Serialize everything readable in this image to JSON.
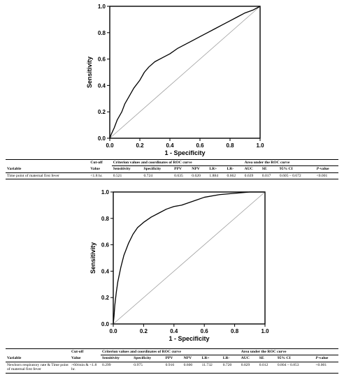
{
  "chart_data": [
    {
      "type": "line",
      "title": "",
      "xlabel": "1 - Specificity",
      "ylabel": "Sensitivity",
      "xlim": [
        0,
        1
      ],
      "ylim": [
        0,
        1
      ],
      "xticks": [
        "0.0",
        "0.2",
        "0.4",
        "0.6",
        "0.8",
        "1.0"
      ],
      "yticks": [
        "0.0",
        "0.2",
        "0.4",
        "0.6",
        "0.8",
        "1.0"
      ],
      "grid": false,
      "series": [
        {
          "x": [
            0,
            0.01,
            0.03,
            0.05,
            0.08,
            0.1,
            0.13,
            0.16,
            0.2,
            0.23,
            0.26,
            0.3,
            0.35,
            0.4,
            0.45,
            0.5,
            0.55,
            0.6,
            0.65,
            0.7,
            0.75,
            0.8,
            0.85,
            0.9,
            0.95,
            1.0
          ],
          "y": [
            0,
            0.03,
            0.08,
            0.14,
            0.2,
            0.26,
            0.32,
            0.38,
            0.44,
            0.5,
            0.54,
            0.58,
            0.61,
            0.64,
            0.68,
            0.71,
            0.74,
            0.77,
            0.8,
            0.83,
            0.86,
            0.89,
            0.92,
            0.95,
            0.97,
            1.0
          ]
        },
        {
          "x": [
            0,
            1
          ],
          "y": [
            0,
            1
          ]
        }
      ]
    },
    {
      "type": "line",
      "title": "",
      "xlabel": "1 - Specificity",
      "ylabel": "Sensitivity",
      "xlim": [
        0,
        1
      ],
      "ylim": [
        0,
        1
      ],
      "xticks": [
        "0.0",
        "0.2",
        "0.4",
        "0.6",
        "0.8",
        "1.0"
      ],
      "yticks": [
        "0.0",
        "0.2",
        "0.4",
        "0.6",
        "0.8",
        "1.0"
      ],
      "grid": false,
      "series": [
        {
          "x": [
            0,
            0.005,
            0.01,
            0.02,
            0.03,
            0.05,
            0.07,
            0.1,
            0.13,
            0.16,
            0.2,
            0.25,
            0.3,
            0.35,
            0.4,
            0.45,
            0.5,
            0.55,
            0.6,
            0.7,
            0.8,
            0.9,
            1.0
          ],
          "y": [
            0,
            0.06,
            0.14,
            0.24,
            0.32,
            0.43,
            0.52,
            0.61,
            0.68,
            0.73,
            0.77,
            0.81,
            0.84,
            0.87,
            0.89,
            0.9,
            0.92,
            0.94,
            0.96,
            0.98,
            0.99,
            1.0,
            1.0
          ]
        },
        {
          "x": [
            0,
            1
          ],
          "y": [
            0,
            1
          ]
        }
      ]
    }
  ],
  "tables": {
    "headers": {
      "variable": "Variable",
      "cutoff_top": "Cut-off",
      "cutoff_sub": "Value",
      "criterion_group": "Criterion values and coordinates of ROC curve",
      "area_group": "Area under the ROC curve",
      "sensitivity": "Sensitivity",
      "specificity": "Specificity",
      "ppv": "PPV",
      "npv": "NPV",
      "lr_plus": "LR+",
      "lr_minus": "LR-",
      "auc": "AUC",
      "se": "SE",
      "ci": "95% CI",
      "p_italic": "P",
      "p_rest": "-value"
    },
    "rows": [
      {
        "variable": "Time point of maternal first fever",
        "cutoff": "<1.8 hr.",
        "sensitivity": "0.521",
        "specificity": "0.724",
        "ppv": "0.635",
        "npv": "0.620",
        "lr_plus": "1.884",
        "lr_minus": "0.662",
        "auc": "0.639",
        "se": "0.017",
        "ci": "0.605 – 0.672",
        "p": "<0.001"
      },
      {
        "variable": "Newborn respiratory rate & Time point of maternal first fever",
        "cutoff": ">60/min & <1.8 hr.",
        "sensitivity": "0.299",
        "specificity": "0.975",
        "ppv": "0.916",
        "npv": "0.600",
        "lr_plus": "11.732",
        "lr_minus": "0.720",
        "auc": "0.829",
        "se": "0.012",
        "ci": "0.804 – 0.853",
        "p": "<0.001"
      }
    ]
  }
}
